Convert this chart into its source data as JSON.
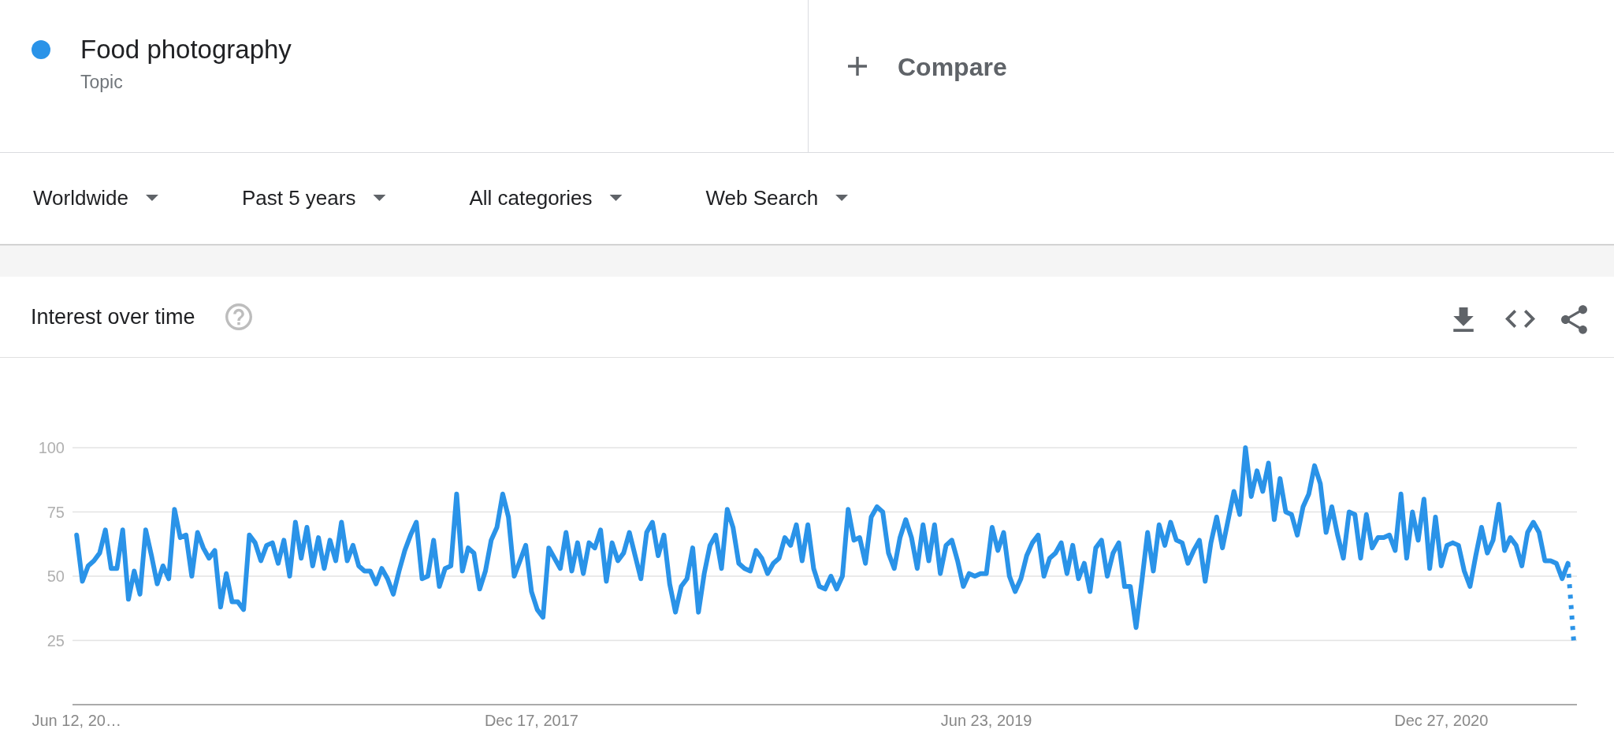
{
  "chart_data": {
    "type": "line",
    "title": "Interest over time",
    "annotations": [
      "Topic",
      "Compare",
      "Worldwide",
      "Past 5 years",
      "All categories",
      "Web Search"
    ],
    "series": [
      {
        "name": "Food photography",
        "color": "#2a93e8",
        "x": [
          "2016-06-12",
          "2016-06-19",
          "2016-06-26",
          "2016-07-03",
          "2016-07-10",
          "2016-07-17",
          "2016-07-24",
          "2016-07-31",
          "2016-08-07",
          "2016-08-14",
          "2016-08-21",
          "2016-08-28",
          "2016-09-04",
          "2016-09-11",
          "2016-09-18",
          "2016-09-25",
          "2016-10-02",
          "2016-10-09",
          "2016-10-16",
          "2016-10-23",
          "2016-10-30",
          "2016-11-06",
          "2016-11-13",
          "2016-11-20",
          "2016-11-27",
          "2016-12-04",
          "2016-12-11",
          "2016-12-18",
          "2016-12-25",
          "2017-01-01",
          "2017-01-08",
          "2017-01-15",
          "2017-01-22",
          "2017-01-29",
          "2017-02-05",
          "2017-02-12",
          "2017-02-19",
          "2017-02-26",
          "2017-03-05",
          "2017-03-12",
          "2017-03-19",
          "2017-03-26",
          "2017-04-02",
          "2017-04-09",
          "2017-04-16",
          "2017-04-23",
          "2017-04-30",
          "2017-05-07",
          "2017-05-14",
          "2017-05-21",
          "2017-05-28",
          "2017-06-04",
          "2017-06-11",
          "2017-06-18",
          "2017-06-25",
          "2017-07-02",
          "2017-07-09",
          "2017-07-16",
          "2017-07-23",
          "2017-07-30",
          "2017-08-06",
          "2017-08-13",
          "2017-08-20",
          "2017-08-27",
          "2017-09-03",
          "2017-09-10",
          "2017-09-17",
          "2017-09-24",
          "2017-10-01",
          "2017-10-08",
          "2017-10-15",
          "2017-10-22",
          "2017-10-29",
          "2017-11-05",
          "2017-11-12",
          "2017-11-19",
          "2017-11-26",
          "2017-12-03",
          "2017-12-10",
          "2017-12-17",
          "2017-12-24",
          "2017-12-31",
          "2018-01-07",
          "2018-01-14",
          "2018-01-21",
          "2018-01-28",
          "2018-02-04",
          "2018-02-11",
          "2018-02-18",
          "2018-02-25",
          "2018-03-04",
          "2018-03-11",
          "2018-03-18",
          "2018-03-25",
          "2018-04-01",
          "2018-04-08",
          "2018-04-15",
          "2018-04-22",
          "2018-04-29",
          "2018-05-06",
          "2018-05-13",
          "2018-05-20",
          "2018-05-27",
          "2018-06-03",
          "2018-06-10",
          "2018-06-17",
          "2018-06-24",
          "2018-07-01",
          "2018-07-08",
          "2018-07-15",
          "2018-07-22",
          "2018-07-29",
          "2018-08-05",
          "2018-08-12",
          "2018-08-19",
          "2018-08-26",
          "2018-09-02",
          "2018-09-09",
          "2018-09-16",
          "2018-09-23",
          "2018-09-30",
          "2018-10-07",
          "2018-10-14",
          "2018-10-21",
          "2018-10-28",
          "2018-11-04",
          "2018-11-11",
          "2018-11-18",
          "2018-11-25",
          "2018-12-02",
          "2018-12-09",
          "2018-12-16",
          "2018-12-23",
          "2018-12-30",
          "2019-01-06",
          "2019-01-13",
          "2019-01-20",
          "2019-01-27",
          "2019-02-03",
          "2019-02-10",
          "2019-02-17",
          "2019-02-24",
          "2019-03-03",
          "2019-03-10",
          "2019-03-17",
          "2019-03-24",
          "2019-03-31",
          "2019-04-07",
          "2019-04-14",
          "2019-04-21",
          "2019-04-28",
          "2019-05-05",
          "2019-05-12",
          "2019-05-19",
          "2019-05-26",
          "2019-06-02",
          "2019-06-09",
          "2019-06-16",
          "2019-06-23",
          "2019-06-30",
          "2019-07-07",
          "2019-07-14",
          "2019-07-21",
          "2019-07-28",
          "2019-08-04",
          "2019-08-11",
          "2019-08-18",
          "2019-08-25",
          "2019-09-01",
          "2019-09-08",
          "2019-09-15",
          "2019-09-22",
          "2019-09-29",
          "2019-10-06",
          "2019-10-13",
          "2019-10-20",
          "2019-10-27",
          "2019-11-03",
          "2019-11-10",
          "2019-11-17",
          "2019-11-24",
          "2019-12-01",
          "2019-12-08",
          "2019-12-15",
          "2019-12-22",
          "2019-12-29",
          "2020-01-05",
          "2020-01-12",
          "2020-01-19",
          "2020-01-26",
          "2020-02-02",
          "2020-02-09",
          "2020-02-16",
          "2020-02-23",
          "2020-03-01",
          "2020-03-08",
          "2020-03-15",
          "2020-03-22",
          "2020-03-29",
          "2020-04-05",
          "2020-04-12",
          "2020-04-19",
          "2020-04-26",
          "2020-05-03",
          "2020-05-10",
          "2020-05-17",
          "2020-05-24",
          "2020-05-31",
          "2020-06-07",
          "2020-06-14",
          "2020-06-21",
          "2020-06-28",
          "2020-07-05",
          "2020-07-12",
          "2020-07-19",
          "2020-07-26",
          "2020-08-02",
          "2020-08-09",
          "2020-08-16",
          "2020-08-23",
          "2020-08-30",
          "2020-09-06",
          "2020-09-13",
          "2020-09-20",
          "2020-09-27",
          "2020-10-04",
          "2020-10-11",
          "2020-10-18",
          "2020-10-25",
          "2020-11-01",
          "2020-11-08",
          "2020-11-15",
          "2020-11-22",
          "2020-11-29",
          "2020-12-06",
          "2020-12-13",
          "2020-12-20",
          "2020-12-27",
          "2021-01-03",
          "2021-01-10",
          "2021-01-17",
          "2021-01-24",
          "2021-01-31",
          "2021-02-07",
          "2021-02-14",
          "2021-02-21",
          "2021-02-28",
          "2021-03-07",
          "2021-03-14",
          "2021-03-21",
          "2021-03-28",
          "2021-04-04",
          "2021-04-11",
          "2021-04-18",
          "2021-04-25",
          "2021-05-02",
          "2021-05-09",
          "2021-05-16",
          "2021-05-23",
          "2021-05-30"
        ],
        "values": [
          66,
          48,
          54,
          56,
          59,
          68,
          53,
          53,
          68,
          41,
          52,
          43,
          68,
          58,
          47,
          54,
          49,
          76,
          65,
          66,
          50,
          67,
          61,
          57,
          60,
          38,
          51,
          40,
          40,
          37,
          66,
          63,
          56,
          62,
          63,
          55,
          64,
          50,
          71,
          57,
          69,
          54,
          65,
          53,
          64,
          56,
          71,
          56,
          62,
          54,
          52,
          52,
          47,
          53,
          49,
          43,
          52,
          60,
          66,
          71,
          49,
          50,
          64,
          46,
          53,
          54,
          82,
          52,
          61,
          59,
          45,
          52,
          64,
          69,
          82,
          73,
          50,
          56,
          62,
          44,
          37,
          34,
          61,
          57,
          53,
          67,
          52,
          63,
          51,
          63,
          61,
          68,
          48,
          63,
          56,
          59,
          67,
          58,
          49,
          67,
          71,
          58,
          66,
          47,
          36,
          46,
          49,
          61,
          36,
          51,
          62,
          66,
          53,
          76,
          69,
          55,
          53,
          52,
          60,
          57,
          51,
          55,
          57,
          65,
          62,
          70,
          56,
          70,
          53,
          46,
          45,
          50,
          45,
          50,
          76,
          64,
          65,
          55,
          73,
          77,
          75,
          59,
          53,
          65,
          72,
          65,
          53,
          70,
          56,
          70,
          51,
          62,
          64,
          56,
          46,
          51,
          50,
          51,
          51,
          69,
          60,
          67,
          50,
          44,
          49,
          58,
          63,
          66,
          50,
          57,
          59,
          63,
          51,
          62,
          49,
          55,
          44,
          61,
          64,
          50,
          59,
          63,
          46,
          46,
          30,
          48,
          67,
          52,
          70,
          62,
          71,
          64,
          63,
          55,
          60,
          64,
          48,
          63,
          73,
          61,
          72,
          83,
          74,
          100,
          81,
          91,
          83,
          94,
          72,
          88,
          75,
          74,
          66,
          77,
          82,
          93,
          86,
          67,
          77,
          66,
          57,
          75,
          74,
          57,
          74,
          61,
          65,
          65,
          66,
          60,
          82,
          57,
          75,
          64,
          80,
          53,
          73,
          54,
          62,
          63,
          62,
          52,
          46,
          58,
          69,
          59,
          64,
          78,
          60,
          65,
          62,
          54,
          67,
          71,
          67,
          56,
          56,
          55,
          49,
          55
        ]
      },
      {
        "color": "#2a93e8",
        "line_style": "dotted",
        "x": [
          "2021-05-30",
          "2021-06-06"
        ],
        "values": [
          55,
          25
        ]
      }
    ],
    "xlim": [
      "2016-06-07",
      "2021-06-10"
    ],
    "xticks": [
      {
        "value": "2016-06-12",
        "label": "Jun 12, 20…"
      },
      {
        "value": "2017-12-17",
        "label": "Dec 17, 2017"
      },
      {
        "value": "2019-06-23",
        "label": "Jun 23, 2019"
      },
      {
        "value": "2020-12-27",
        "label": "Dec 27, 2020"
      }
    ],
    "ylim": [
      0,
      100
    ],
    "yticks": [
      25,
      50,
      75,
      100
    ],
    "grid": "y",
    "legend": "top left"
  }
}
